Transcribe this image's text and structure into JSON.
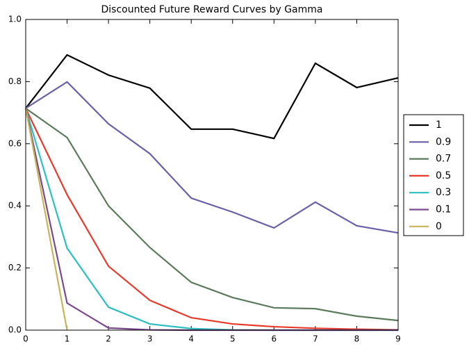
{
  "chart_data": {
    "type": "line",
    "title": "Discounted Future Reward Curves by Gamma",
    "x": [
      0,
      1,
      2,
      3,
      4,
      5,
      6,
      7,
      8,
      9
    ],
    "series": [
      {
        "name": "1",
        "color": "#000000",
        "values": [
          0.714,
          0.886,
          0.821,
          0.779,
          0.647,
          0.647,
          0.617,
          0.859,
          0.781,
          0.812
        ]
      },
      {
        "name": "0.9",
        "color": "#6a5fa8",
        "values": [
          0.714,
          0.799,
          0.664,
          0.568,
          0.425,
          0.38,
          0.329,
          0.412,
          0.336,
          0.313
        ]
      },
      {
        "name": "0.7",
        "color": "#5b7a5b",
        "values": [
          0.714,
          0.62,
          0.4,
          0.266,
          0.154,
          0.105,
          0.072,
          0.069,
          0.045,
          0.031
        ]
      },
      {
        "name": "0.5",
        "color": "#e8392b",
        "values": [
          0.714,
          0.436,
          0.206,
          0.096,
          0.04,
          0.02,
          0.011,
          0.006,
          0.003,
          0.001
        ]
      },
      {
        "name": "0.3",
        "color": "#2cbfbf",
        "values": [
          0.714,
          0.264,
          0.074,
          0.02,
          0.005,
          0.001,
          0,
          0,
          0,
          0
        ]
      },
      {
        "name": "0.1",
        "color": "#7b4a8c",
        "values": [
          0.714,
          0.087,
          0.007,
          0.001,
          0,
          0,
          0,
          0,
          0,
          0
        ]
      },
      {
        "name": "0",
        "color": "#c9b45a",
        "values": [
          0.714,
          0,
          null,
          null,
          null,
          null,
          null,
          null,
          null,
          null
        ]
      }
    ],
    "xlim": [
      0,
      9
    ],
    "xticks": [
      0,
      1,
      2,
      3,
      4,
      5,
      6,
      7,
      8,
      9
    ],
    "ylim": [
      0,
      1
    ],
    "yticks": [
      {
        "value": 0,
        "label": "0.0"
      },
      0.2,
      0.4,
      0.6,
      0.8,
      {
        "value": 1,
        "label": "1.0"
      }
    ],
    "legend": "right"
  }
}
